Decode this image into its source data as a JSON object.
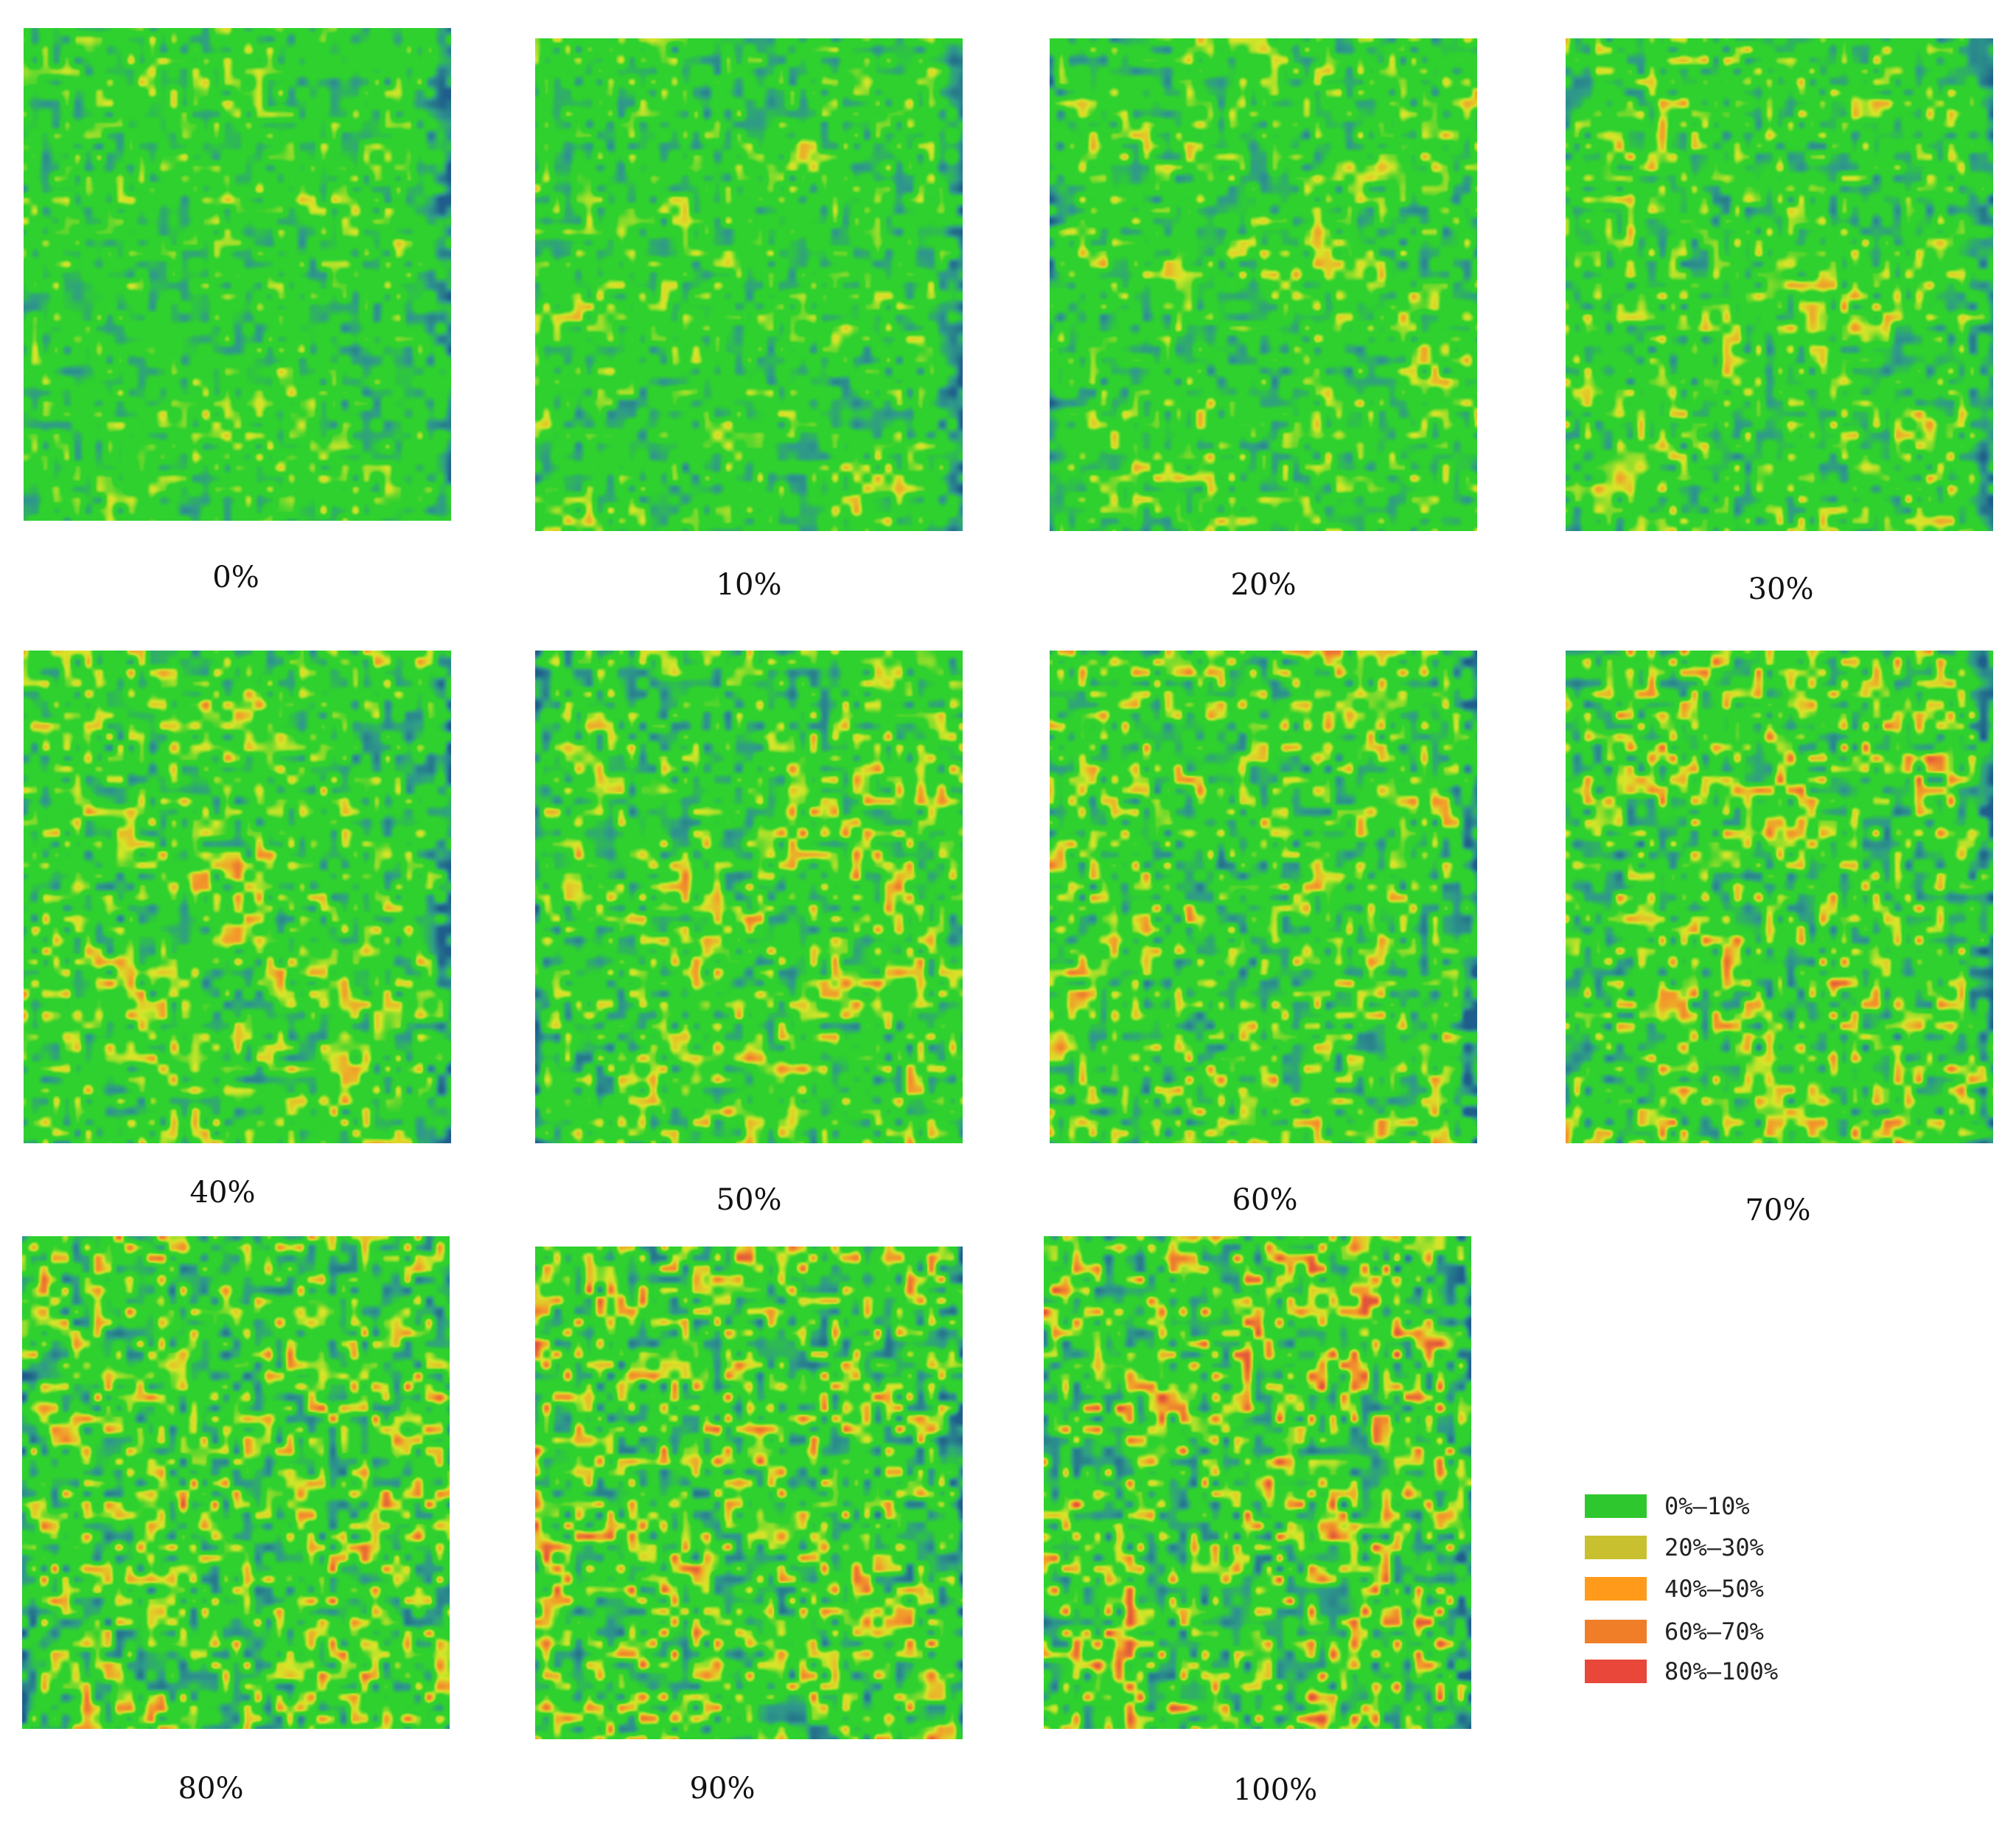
{
  "panels": [
    {
      "label": "0%",
      "level": 0.0
    },
    {
      "label": "10%",
      "level": 0.1
    },
    {
      "label": "20%",
      "level": 0.2
    },
    {
      "label": "30%",
      "level": 0.3
    },
    {
      "label": "40%",
      "level": 0.4
    },
    {
      "label": "50%",
      "level": 0.5
    },
    {
      "label": "60%",
      "level": 0.6
    },
    {
      "label": "70%",
      "level": 0.7
    },
    {
      "label": "80%",
      "level": 0.8
    },
    {
      "label": "90%",
      "level": 0.9
    },
    {
      "label": "100%",
      "level": 1.0
    }
  ],
  "legend": [
    {
      "label": "0%–10%",
      "color": "#2ec82e"
    },
    {
      "label": "20%–30%",
      "color": "#c8c02e"
    },
    {
      "label": "40%–50%",
      "color": "#ff9a1a"
    },
    {
      "label": "60%–70%",
      "color": "#f07d28"
    },
    {
      "label": "80%–100%",
      "color": "#e8473a"
    }
  ],
  "colormap": {
    "deep_blue": "#1f5e8c",
    "teal": "#2f9a8a",
    "green": "#2ed12e",
    "yellow": "#d8e629",
    "orange": "#f39a2a",
    "red": "#e2533c"
  }
}
